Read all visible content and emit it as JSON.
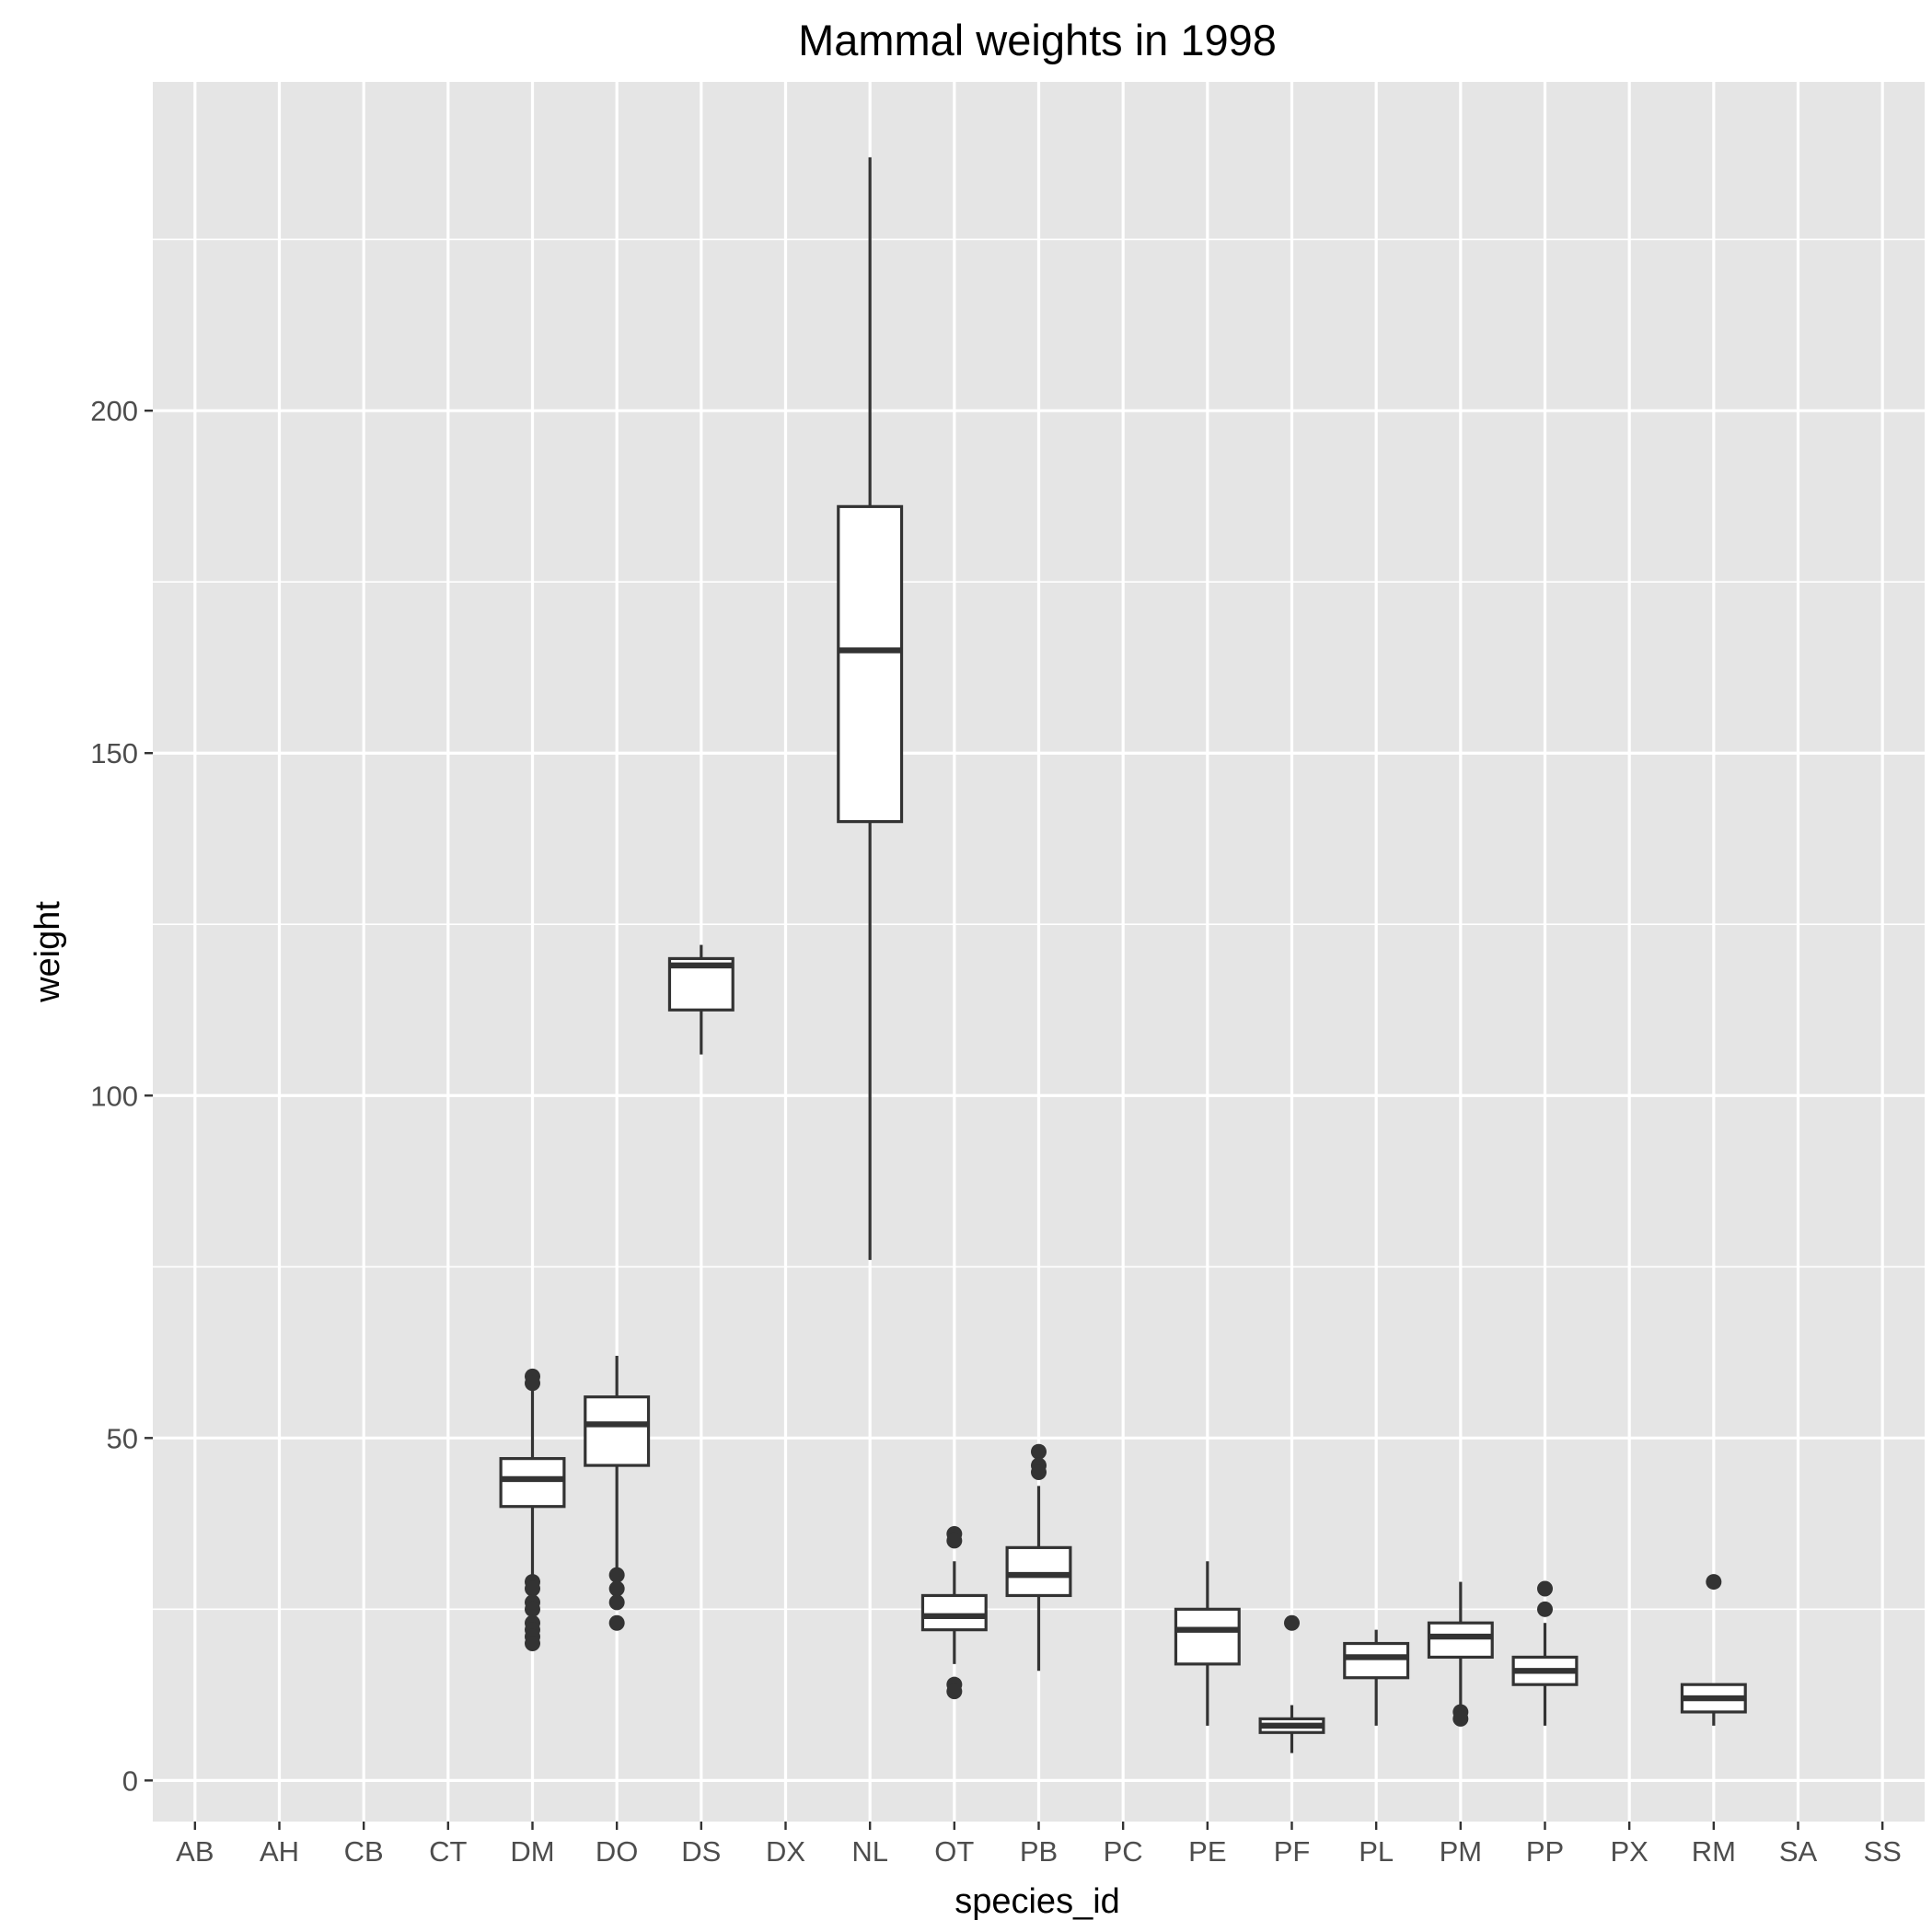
{
  "chart_data": {
    "type": "boxplot",
    "title": "Mammal weights in  1998",
    "xlabel": "species_id",
    "ylabel": "weight",
    "ylim": [
      -6,
      248
    ],
    "yticks": [
      0,
      50,
      100,
      150,
      200
    ],
    "ytick_labels": [
      "0",
      "50",
      "100",
      "150",
      "200"
    ],
    "grid": true,
    "categories": [
      "AB",
      "AH",
      "CB",
      "CT",
      "DM",
      "DO",
      "DS",
      "DX",
      "NL",
      "OT",
      "PB",
      "PC",
      "PE",
      "PF",
      "PL",
      "PM",
      "PP",
      "PX",
      "RM",
      "SA",
      "SS"
    ],
    "boxes": [
      {
        "category": "DM",
        "whisker_low": 30,
        "q1": 40,
        "median": 44,
        "q3": 47,
        "whisker_high": 57,
        "outliers": [
          59,
          58,
          29,
          28,
          26,
          25,
          23,
          22,
          21,
          20
        ]
      },
      {
        "category": "DO",
        "whisker_low": 31,
        "q1": 46,
        "median": 52,
        "q3": 56,
        "whisker_high": 62,
        "outliers": [
          30,
          28,
          26,
          23
        ]
      },
      {
        "category": "DS",
        "whisker_low": 106,
        "q1": 112.5,
        "median": 119,
        "q3": 120,
        "whisker_high": 122,
        "outliers": []
      },
      {
        "category": "NL",
        "whisker_low": 76,
        "q1": 140,
        "median": 165,
        "q3": 186,
        "whisker_high": 237,
        "outliers": []
      },
      {
        "category": "OT",
        "whisker_low": 17,
        "q1": 22,
        "median": 24,
        "q3": 27,
        "whisker_high": 32,
        "outliers": [
          36,
          35,
          14,
          13
        ]
      },
      {
        "category": "PB",
        "whisker_low": 16,
        "q1": 27,
        "median": 30,
        "q3": 34,
        "whisker_high": 43,
        "outliers": [
          48,
          46,
          45
        ]
      },
      {
        "category": "PE",
        "whisker_low": 8,
        "q1": 17,
        "median": 22,
        "q3": 25,
        "whisker_high": 32,
        "outliers": []
      },
      {
        "category": "PF",
        "whisker_low": 4,
        "q1": 7,
        "median": 8,
        "q3": 9,
        "whisker_high": 11,
        "outliers": [
          23
        ]
      },
      {
        "category": "PL",
        "whisker_low": 8,
        "q1": 15,
        "median": 18,
        "q3": 20,
        "whisker_high": 22,
        "outliers": []
      },
      {
        "category": "PM",
        "whisker_low": 11,
        "q1": 18,
        "median": 21,
        "q3": 23,
        "whisker_high": 29,
        "outliers": [
          10,
          9
        ]
      },
      {
        "category": "PP",
        "whisker_low": 8,
        "q1": 14,
        "median": 16,
        "q3": 18,
        "whisker_high": 23,
        "outliers": [
          28,
          25
        ]
      },
      {
        "category": "RM",
        "whisker_low": 8,
        "q1": 10,
        "median": 12,
        "q3": 14,
        "whisker_high": 14,
        "outliers": [
          29
        ]
      }
    ]
  }
}
